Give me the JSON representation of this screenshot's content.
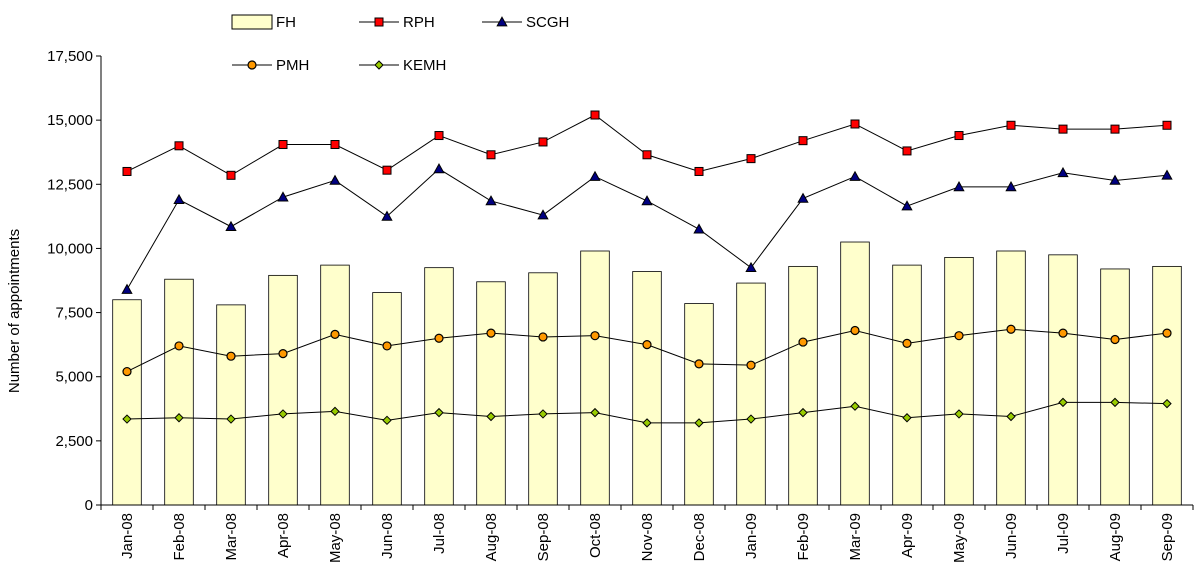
{
  "chart_data": {
    "type": "bar",
    "title": "",
    "xlabel": "",
    "ylabel": "Number of appointments",
    "ylim": [
      0,
      17500
    ],
    "yticks": [
      0,
      2500,
      5000,
      7500,
      10000,
      12500,
      15000,
      17500
    ],
    "ytick_labels": [
      "0",
      "2,500",
      "5,000",
      "7,500",
      "10,000",
      "12,500",
      "15,000",
      "17,500"
    ],
    "categories": [
      "Jan-08",
      "Feb-08",
      "Mar-08",
      "Apr-08",
      "May-08",
      "Jun-08",
      "Jul-08",
      "Aug-08",
      "Sep-08",
      "Oct-08",
      "Nov-08",
      "Dec-08",
      "Jan-09",
      "Feb-09",
      "Mar-09",
      "Apr-09",
      "May-09",
      "Jun-09",
      "Jul-09",
      "Aug-09",
      "Sep-09"
    ],
    "grid": false,
    "legend_position": "top",
    "series": [
      {
        "name": "FH",
        "kind": "bar",
        "color": "#FFFFCC",
        "edge": "#000000",
        "values": [
          8000,
          8800,
          7800,
          8950,
          9350,
          8280,
          9250,
          8700,
          9050,
          9900,
          9100,
          7850,
          8650,
          9300,
          10250,
          9350,
          9650,
          9900,
          9750,
          9200,
          9300
        ]
      },
      {
        "name": "RPH",
        "kind": "line",
        "marker": "square",
        "color": "#FF0000",
        "values": [
          13000,
          14000,
          12850,
          14050,
          14050,
          13050,
          14400,
          13650,
          14150,
          15200,
          13650,
          13000,
          13500,
          14200,
          14850,
          13800,
          14400,
          14800,
          14650,
          14650,
          14800
        ]
      },
      {
        "name": "SCGH",
        "kind": "line",
        "marker": "triangle",
        "color": "#000080",
        "values": [
          8400,
          11900,
          10850,
          12000,
          12650,
          11250,
          13100,
          11850,
          11300,
          12800,
          11850,
          10750,
          9250,
          11950,
          12800,
          11650,
          12400,
          12400,
          12950,
          12650,
          12850
        ]
      },
      {
        "name": "PMH",
        "kind": "line",
        "marker": "circle",
        "color": "#FF9900",
        "values": [
          5200,
          6200,
          5800,
          5900,
          6650,
          6200,
          6500,
          6700,
          6550,
          6600,
          6250,
          5500,
          5450,
          6350,
          6800,
          6300,
          6600,
          6850,
          6700,
          6450,
          6700
        ]
      },
      {
        "name": "KEMH",
        "kind": "line",
        "marker": "diamond",
        "color": "#99CC00",
        "values": [
          3350,
          3400,
          3350,
          3550,
          3650,
          3300,
          3600,
          3450,
          3550,
          3600,
          3200,
          3200,
          3350,
          3600,
          3850,
          3400,
          3550,
          3450,
          4000,
          4000,
          3950
        ]
      }
    ]
  }
}
